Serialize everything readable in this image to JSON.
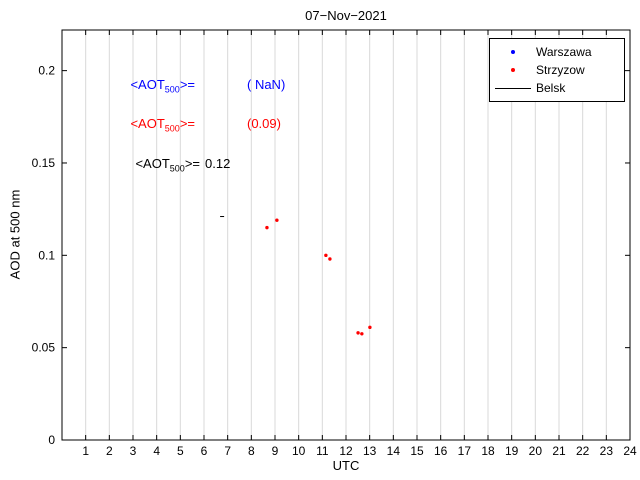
{
  "chart": {
    "title": "07−Nov−2021",
    "xlabel": "UTC",
    "ylabel": "AOD at 500 nm"
  },
  "chart_data": {
    "type": "scatter",
    "title": "07−Nov−2021",
    "xlabel": "UTC",
    "ylabel": "AOD at 500 nm",
    "xlim": [
      0,
      24
    ],
    "ylim": [
      0,
      0.222
    ],
    "x_ticks": [
      1,
      2,
      3,
      4,
      5,
      6,
      7,
      8,
      9,
      10,
      11,
      12,
      13,
      14,
      15,
      16,
      17,
      18,
      19,
      20,
      21,
      22,
      23,
      24
    ],
    "y_ticks": [
      0,
      0.05,
      0.1,
      0.15,
      0.2
    ],
    "y_tick_labels": [
      "0",
      "0.05",
      "0.1",
      "0.15",
      "0.2"
    ],
    "grid": "x-only",
    "grid_color": "#d9d9d9",
    "axis_color": "#000000",
    "legend_position": "top-right",
    "series": [
      {
        "name": "Warszawa",
        "color": "#0000ff",
        "marker": "dot",
        "points": []
      },
      {
        "name": "Strzyzow",
        "color": "#ff0000",
        "marker": "dot",
        "points": [
          [
            8.66,
            0.115
          ],
          [
            9.08,
            0.119
          ],
          [
            11.15,
            0.1
          ],
          [
            11.32,
            0.098
          ],
          [
            12.51,
            0.058
          ],
          [
            12.67,
            0.0575
          ],
          [
            13.01,
            0.061
          ]
        ]
      },
      {
        "name": "Belsk",
        "color": "#000000",
        "marker": "line",
        "points": [
          [
            6.68,
            0.121
          ],
          [
            6.85,
            0.121
          ]
        ]
      }
    ],
    "mean_aot500": {
      "Warszawa": "NaN",
      "Strzyzow": "0.09",
      "Belsk": "0.12"
    }
  },
  "annotations": [
    {
      "pre": "<AOT",
      "sub": "500",
      "post": ">=",
      "value": "( NaN)",
      "color": "#0000ff"
    },
    {
      "pre": "<AOT",
      "sub": "500",
      "post": ">=",
      "value": "(0.09)",
      "color": "#ff0000"
    },
    {
      "pre": "<AOT",
      "sub": "500",
      "post": ">=",
      "value": "0.12",
      "color": "#000000"
    }
  ],
  "legend": {
    "items": [
      {
        "label": "Warszawa",
        "color": "#0000ff",
        "marker": "dot"
      },
      {
        "label": "Strzyzow",
        "color": "#ff0000",
        "marker": "dot"
      },
      {
        "label": "Belsk",
        "color": "#000000",
        "marker": "line"
      }
    ]
  }
}
